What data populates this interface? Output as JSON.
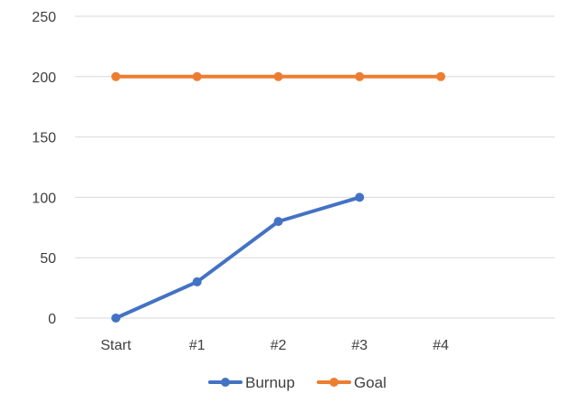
{
  "chart_data": {
    "type": "line",
    "title": "",
    "xlabel": "",
    "ylabel": "",
    "categories": [
      "Start",
      "#1",
      "#2",
      "#3",
      "#4"
    ],
    "ylim": [
      0,
      250
    ],
    "yticks": [
      0,
      50,
      100,
      150,
      200,
      250
    ],
    "grid": true,
    "legend_position": "bottom",
    "series": [
      {
        "name": "Burnup",
        "color": "#4472C4",
        "values": [
          0,
          30,
          80,
          100,
          null
        ]
      },
      {
        "name": "Goal",
        "color": "#ED7D31",
        "values": [
          200,
          200,
          200,
          200,
          200
        ]
      }
    ]
  }
}
